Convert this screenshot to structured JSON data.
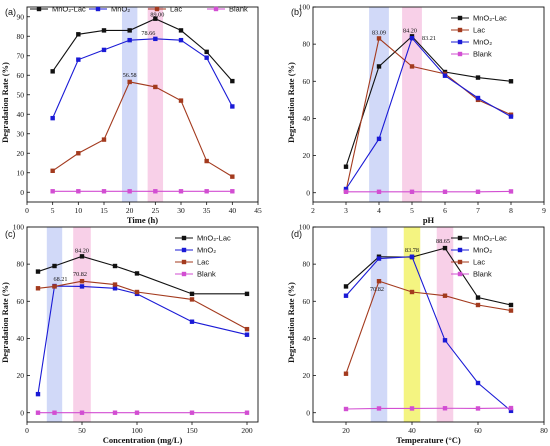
{
  "chart_data": [
    {
      "type": "line",
      "panel_label": "(a)",
      "xlabel": "Time (h)",
      "ylabel": "Degradation Rate (%)",
      "xlim": [
        0,
        45
      ],
      "ylim": [
        -5,
        95
      ],
      "xticks": [
        "0",
        "5",
        "10",
        "15",
        "20",
        "25",
        "30",
        "35",
        "40",
        "45"
      ],
      "yticks": [
        "0",
        "10",
        "20",
        "30",
        "40",
        "50",
        "60",
        "70",
        "80",
        "90"
      ],
      "x": [
        5,
        10,
        15,
        20,
        25,
        30,
        35,
        40
      ],
      "series": [
        {
          "name": "MnO2-Lac",
          "color": "#111111",
          "marker": "square",
          "values": [
            62,
            81,
            83,
            83,
            89,
            83,
            72,
            57
          ]
        },
        {
          "name": "MnO2",
          "color": "#1a1ad6",
          "marker": "square",
          "values": [
            38,
            68,
            73,
            78,
            78.66,
            78,
            69,
            44
          ]
        },
        {
          "name": "Lac",
          "color": "#a33a1e",
          "marker": "square",
          "values": [
            11,
            20,
            27,
            56.58,
            54,
            47,
            16,
            8
          ]
        },
        {
          "name": "Blank",
          "color": "#d24ed2",
          "marker": "square",
          "values": [
            0.5,
            0.5,
            0.5,
            0.5,
            0.5,
            0.5,
            0.5,
            0.5
          ]
        }
      ],
      "bands": [
        {
          "from": 18.5,
          "to": 21.5,
          "color": "#c9d2f7"
        },
        {
          "from": 23.5,
          "to": 26.5,
          "color": "#f7c8e4"
        }
      ],
      "annotations": [
        {
          "text": "89.00",
          "x": 25,
          "y": 89,
          "dx": 2,
          "dy": -2
        },
        {
          "text": "78.66",
          "x": 25,
          "y": 78.66,
          "dx": -7,
          "dy": -4
        },
        {
          "text": "56.58",
          "x": 20,
          "y": 56.58,
          "dx": 0,
          "dy": -5
        }
      ],
      "legend": {
        "placement": "top",
        "entries": [
          "MnO₂-Lac",
          "MnO₂",
          "Lac",
          "Blank"
        ]
      }
    },
    {
      "type": "line",
      "panel_label": "(b)",
      "xlabel": "pH",
      "ylabel": "Degradation Rate (%)",
      "xlim": [
        2,
        9
      ],
      "ylim": [
        -5,
        100
      ],
      "xticks": [
        "2",
        "3",
        "4",
        "5",
        "6",
        "7",
        "8",
        "9"
      ],
      "yticks": [
        "0",
        "20",
        "40",
        "60",
        "80",
        "100"
      ],
      "x": [
        3,
        4,
        5,
        6,
        7,
        8
      ],
      "series": [
        {
          "name": "MnO2-Lac",
          "color": "#111111",
          "marker": "square",
          "values": [
            14,
            68,
            84.2,
            65,
            62,
            60
          ]
        },
        {
          "name": "Lac",
          "color": "#a33a1e",
          "marker": "square",
          "values": [
            1,
            83.09,
            68,
            64,
            50,
            42
          ]
        },
        {
          "name": "MnO2",
          "color": "#1a1ad6",
          "marker": "square",
          "values": [
            2,
            29,
            83.21,
            63,
            51,
            41
          ]
        },
        {
          "name": "Blank",
          "color": "#d24ed2",
          "marker": "square",
          "values": [
            0.5,
            0.5,
            0.5,
            0.5,
            0.5,
            0.7
          ]
        }
      ],
      "bands": [
        {
          "from": 3.7,
          "to": 4.3,
          "color": "#c9d2f7"
        },
        {
          "from": 4.7,
          "to": 5.3,
          "color": "#f7c8e4"
        }
      ],
      "annotations": [
        {
          "text": "83.09",
          "x": 4,
          "y": 83.09,
          "dx": 0,
          "dy": -4
        },
        {
          "text": "84.20",
          "x": 5,
          "y": 84.2,
          "dx": -2,
          "dy": -4
        },
        {
          "text": "83.21",
          "x": 5,
          "y": 83.21,
          "dx": 17,
          "dy": 2
        }
      ],
      "legend": {
        "placement": "top-right",
        "entries": [
          "MnO₂-Lac",
          "Lac",
          "MnO₂",
          "Blank"
        ]
      }
    },
    {
      "type": "line",
      "panel_label": "(c)",
      "xlabel": "Concentration (mg/L)",
      "ylabel": "Degradation Rate (%)",
      "xlim": [
        0,
        210
      ],
      "ylim": [
        -5,
        100
      ],
      "xticks": [
        "0",
        "50",
        "100",
        "150",
        "200"
      ],
      "yticks": [
        "0",
        "20",
        "40",
        "60",
        "80",
        "100"
      ],
      "x": [
        10,
        25,
        50,
        80,
        100,
        150,
        200
      ],
      "series": [
        {
          "name": "MnO2-Lac",
          "color": "#111111",
          "marker": "square",
          "values": [
            76,
            79,
            84.2,
            79,
            75,
            64,
            64
          ]
        },
        {
          "name": "MnO2",
          "color": "#1a1ad6",
          "marker": "square",
          "values": [
            10,
            68.21,
            68,
            67,
            64,
            49,
            42
          ]
        },
        {
          "name": "Lac",
          "color": "#a33a1e",
          "marker": "square",
          "values": [
            67,
            68,
            70.82,
            69,
            65,
            61,
            45
          ]
        },
        {
          "name": "Blank",
          "color": "#d24ed2",
          "marker": "square",
          "values": [
            0,
            0,
            0,
            0,
            0,
            0,
            0
          ]
        }
      ],
      "bands": [
        {
          "from": 18,
          "to": 32,
          "color": "#c9d2f7"
        },
        {
          "from": 42,
          "to": 58,
          "color": "#f7c8e4"
        }
      ],
      "annotations": [
        {
          "text": "84.20",
          "x": 50,
          "y": 84.2,
          "dx": 0,
          "dy": -4
        },
        {
          "text": "68.21",
          "x": 25,
          "y": 68.21,
          "dx": 6,
          "dy": -5
        },
        {
          "text": "70.82",
          "x": 50,
          "y": 70.82,
          "dx": -2,
          "dy": -5
        }
      ],
      "legend": {
        "placement": "right",
        "entries": [
          "MnO₂-Lac",
          "MnO₂",
          "Lac",
          "Blank"
        ]
      }
    },
    {
      "type": "line",
      "panel_label": "(d)",
      "xlabel": "Temperature (°C)",
      "ylabel": "Degradation Rate (%)",
      "xlim": [
        10,
        80
      ],
      "ylim": [
        -5,
        100
      ],
      "xticks": [
        "20",
        "40",
        "60",
        "80"
      ],
      "yticks": [
        "0",
        "20",
        "40",
        "60",
        "80",
        "100"
      ],
      "x": [
        20,
        30,
        40,
        50,
        60,
        70
      ],
      "series": [
        {
          "name": "MnO2-Lac",
          "color": "#111111",
          "marker": "square",
          "values": [
            68,
            84,
            83.78,
            88.65,
            62,
            58
          ]
        },
        {
          "name": "MnO2",
          "color": "#1a1ad6",
          "marker": "square",
          "values": [
            63,
            83,
            84,
            39,
            16,
            1
          ]
        },
        {
          "name": "Lac",
          "color": "#a33a1e",
          "marker": "square",
          "values": [
            21,
            70.82,
            65,
            63,
            58,
            55
          ]
        },
        {
          "name": "Blank",
          "color": "#d24ed2",
          "marker": "square",
          "values": [
            2,
            2.3,
            2.3,
            2.4,
            2.3,
            2.5
          ]
        }
      ],
      "bands": [
        {
          "from": 27.5,
          "to": 32.5,
          "color": "#c9d2f7"
        },
        {
          "from": 37.5,
          "to": 42.5,
          "color": "#f2f26b"
        },
        {
          "from": 47.5,
          "to": 52.5,
          "color": "#f7c8e4"
        }
      ],
      "annotations": [
        {
          "text": "70.82",
          "x": 30,
          "y": 70.82,
          "dx": -2,
          "dy": 10
        },
        {
          "text": "83.78",
          "x": 40,
          "y": 83.78,
          "dx": 0,
          "dy": -5
        },
        {
          "text": "88.65",
          "x": 50,
          "y": 88.65,
          "dx": -2,
          "dy": -5
        }
      ],
      "legend": {
        "placement": "top-right",
        "entries": [
          "MnO₂-Lac",
          "MnO₂",
          "Lac",
          "Blank"
        ]
      }
    }
  ]
}
